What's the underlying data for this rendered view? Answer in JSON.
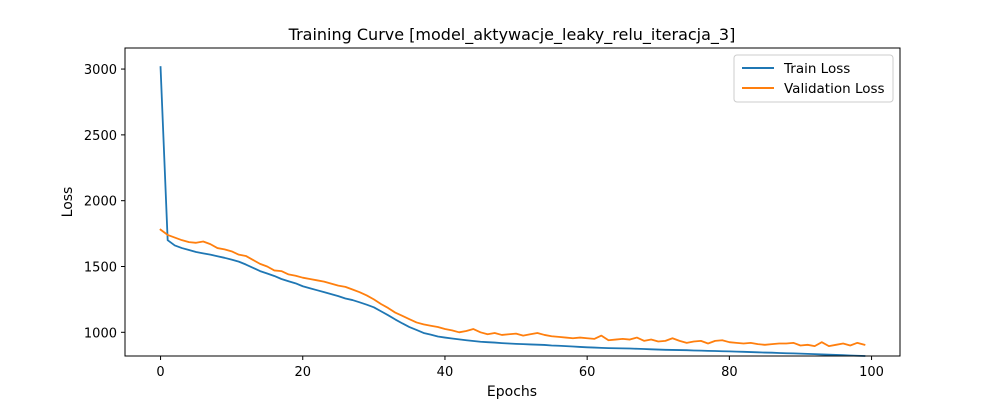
{
  "chart_data": {
    "type": "line",
    "title": "Training Curve [model_aktywacje_leaky_relu_iteracja_3]",
    "xlabel": "Epochs",
    "ylabel": "Loss",
    "xlim": [
      -5,
      104
    ],
    "ylim": [
      820,
      3160
    ],
    "xticks": [
      0,
      20,
      40,
      60,
      80,
      100
    ],
    "yticks": [
      1000,
      1500,
      2000,
      2500,
      3000
    ],
    "legend_position": "top-right",
    "grid": false,
    "x": [
      0,
      1,
      2,
      3,
      4,
      5,
      6,
      7,
      8,
      9,
      10,
      11,
      12,
      13,
      14,
      15,
      16,
      17,
      18,
      19,
      20,
      21,
      22,
      23,
      24,
      25,
      26,
      27,
      28,
      29,
      30,
      31,
      32,
      33,
      34,
      35,
      36,
      37,
      38,
      39,
      40,
      41,
      42,
      43,
      44,
      45,
      46,
      47,
      48,
      49,
      50,
      51,
      52,
      53,
      54,
      55,
      56,
      57,
      58,
      59,
      60,
      61,
      62,
      63,
      64,
      65,
      66,
      67,
      68,
      69,
      70,
      71,
      72,
      73,
      74,
      75,
      76,
      77,
      78,
      79,
      80,
      81,
      82,
      83,
      84,
      85,
      86,
      87,
      88,
      89,
      90,
      91,
      92,
      93,
      94,
      95,
      96,
      97,
      98,
      99
    ],
    "series": [
      {
        "name": "Train Loss",
        "color": "#1f77b4",
        "values": [
          3015,
          1700,
          1660,
          1640,
          1625,
          1610,
          1600,
          1590,
          1578,
          1566,
          1552,
          1537,
          1515,
          1490,
          1465,
          1447,
          1428,
          1405,
          1388,
          1372,
          1350,
          1335,
          1320,
          1305,
          1290,
          1275,
          1257,
          1245,
          1228,
          1210,
          1190,
          1160,
          1130,
          1098,
          1068,
          1040,
          1018,
          995,
          982,
          968,
          960,
          953,
          946,
          940,
          934,
          928,
          925,
          922,
          918,
          915,
          912,
          910,
          908,
          906,
          904,
          900,
          898,
          895,
          892,
          889,
          886,
          884,
          882,
          880,
          879,
          878,
          877,
          875,
          873,
          871,
          869,
          867,
          866,
          865,
          864,
          862,
          861,
          859,
          858,
          856,
          855,
          853,
          852,
          850,
          848,
          846,
          845,
          843,
          841,
          840,
          838,
          836,
          834,
          832,
          830,
          828,
          826,
          824,
          822,
          820
        ]
      },
      {
        "name": "Validation Loss",
        "color": "#ff7f0e",
        "values": [
          1780,
          1740,
          1720,
          1700,
          1685,
          1680,
          1690,
          1670,
          1640,
          1630,
          1615,
          1590,
          1580,
          1550,
          1520,
          1500,
          1470,
          1465,
          1440,
          1430,
          1415,
          1405,
          1395,
          1385,
          1370,
          1355,
          1345,
          1325,
          1305,
          1280,
          1250,
          1215,
          1185,
          1150,
          1125,
          1100,
          1075,
          1060,
          1050,
          1040,
          1025,
          1015,
          1000,
          1010,
          1025,
          1000,
          985,
          995,
          980,
          985,
          990,
          975,
          985,
          995,
          980,
          970,
          965,
          960,
          955,
          960,
          955,
          950,
          975,
          940,
          945,
          950,
          945,
          960,
          935,
          945,
          930,
          935,
          955,
          935,
          920,
          930,
          935,
          915,
          935,
          940,
          925,
          920,
          915,
          920,
          910,
          905,
          910,
          915,
          915,
          920,
          900,
          905,
          895,
          925,
          895,
          905,
          915,
          900,
          920,
          905
        ]
      }
    ]
  }
}
